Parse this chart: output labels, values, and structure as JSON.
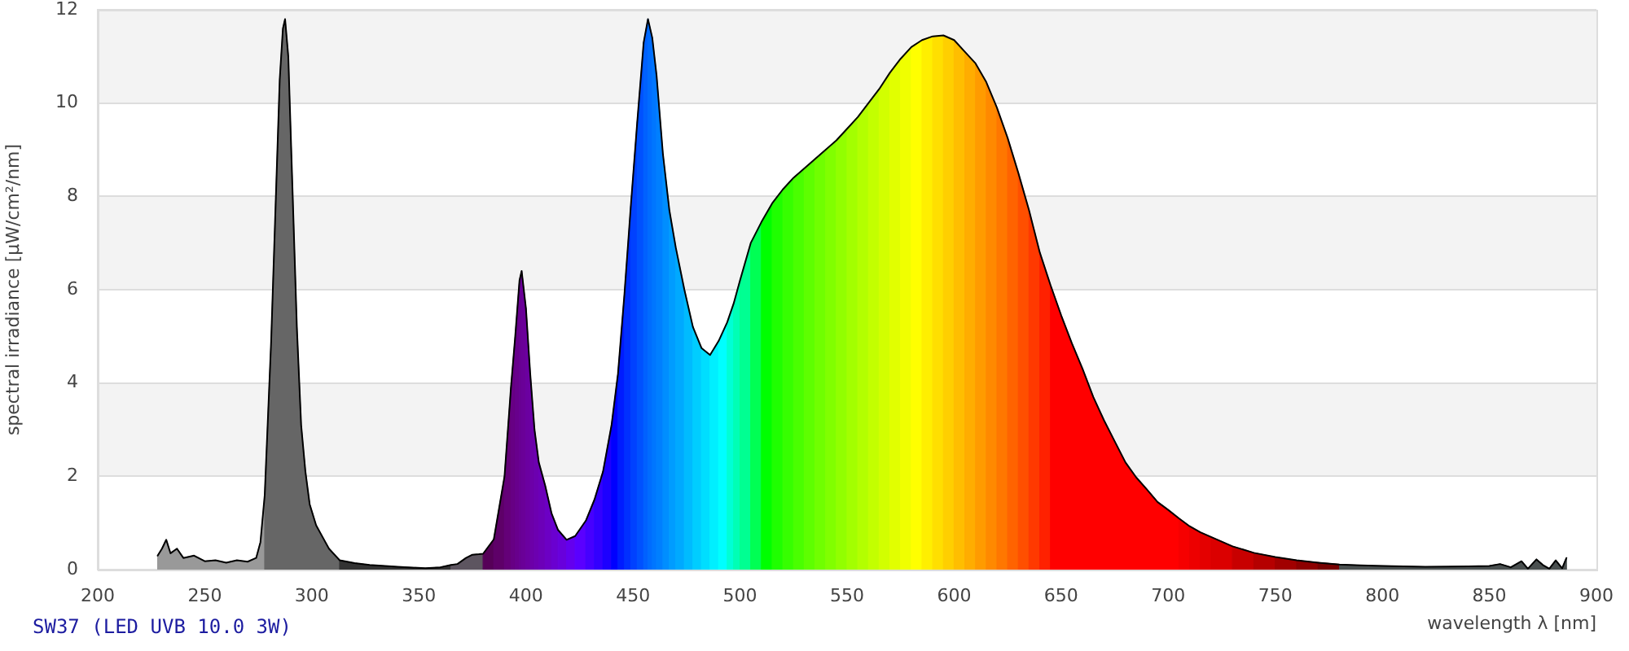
{
  "chart_data": {
    "type": "area",
    "xlabel": "wavelength λ [nm]",
    "ylabel": "spectral irradiance [µW/cm²/nm]",
    "annotations": [
      "SW37 (LED UVB 10.0 3W)"
    ],
    "xlim": [
      200,
      900
    ],
    "xticks": [
      200,
      250,
      300,
      350,
      400,
      450,
      500,
      550,
      600,
      650,
      700,
      750,
      800,
      850,
      900
    ],
    "ylim": [
      0,
      12
    ],
    "yticks": [
      0,
      2,
      4,
      6,
      8,
      10,
      12
    ],
    "grid": "y",
    "marker": "none",
    "series": [
      {
        "type": "line",
        "color": "#000000",
        "x": [
          228,
          230,
          232,
          234,
          237,
          240,
          245,
          250,
          255,
          260,
          265,
          270,
          274,
          276,
          278,
          281,
          283,
          285,
          286.5,
          287.5,
          289,
          291,
          293,
          295,
          297,
          299,
          302,
          305,
          308,
          312,
          313,
          320,
          327,
          340,
          353,
          360,
          365,
          368,
          372,
          375,
          378,
          380,
          385,
          390,
          393,
          395,
          397,
          398,
          400,
          402,
          404,
          406,
          409,
          412,
          415,
          419,
          423,
          428,
          432,
          436,
          440,
          443,
          446,
          449,
          452,
          455,
          457,
          459,
          461,
          464,
          467,
          470,
          474,
          478,
          482,
          486,
          490,
          494,
          497,
          500,
          505,
          510,
          515,
          520,
          525,
          530,
          535,
          540,
          545,
          550,
          555,
          560,
          565,
          570,
          575,
          580,
          585,
          590,
          595,
          600,
          605,
          610,
          615,
          620,
          625,
          630,
          635,
          640,
          645,
          650,
          655,
          660,
          665,
          670,
          675,
          680,
          685,
          690,
          695,
          700,
          705,
          710,
          715,
          720,
          730,
          740,
          750,
          760,
          770,
          780,
          790,
          800,
          820,
          840,
          850,
          855,
          860,
          865,
          868,
          872,
          875,
          878,
          881,
          884,
          886
        ],
        "values": [
          0.3,
          0.45,
          0.64,
          0.35,
          0.45,
          0.25,
          0.3,
          0.18,
          0.2,
          0.15,
          0.2,
          0.17,
          0.25,
          0.59,
          1.6,
          4.9,
          7.7,
          10.5,
          11.6,
          11.8,
          11.0,
          8.1,
          5.2,
          3.1,
          2.1,
          1.4,
          0.95,
          0.7,
          0.45,
          0.25,
          0.2,
          0.14,
          0.1,
          0.06,
          0.03,
          0.05,
          0.1,
          0.12,
          0.25,
          0.32,
          0.33,
          0.34,
          0.65,
          2.0,
          3.9,
          5.0,
          6.2,
          6.4,
          5.6,
          4.2,
          3.0,
          2.3,
          1.8,
          1.2,
          0.85,
          0.64,
          0.72,
          1.05,
          1.5,
          2.1,
          3.1,
          4.2,
          5.9,
          7.8,
          9.6,
          11.3,
          11.8,
          11.4,
          10.6,
          8.9,
          7.7,
          6.9,
          6.0,
          5.2,
          4.75,
          4.6,
          4.9,
          5.3,
          5.7,
          6.2,
          7.0,
          7.45,
          7.85,
          8.15,
          8.4,
          8.6,
          8.8,
          9.0,
          9.2,
          9.45,
          9.7,
          10.0,
          10.3,
          10.65,
          10.95,
          11.2,
          11.35,
          11.43,
          11.45,
          11.35,
          11.1,
          10.85,
          10.45,
          9.9,
          9.25,
          8.5,
          7.7,
          6.8,
          6.1,
          5.45,
          4.85,
          4.3,
          3.7,
          3.2,
          2.75,
          2.3,
          1.98,
          1.72,
          1.45,
          1.28,
          1.1,
          0.93,
          0.8,
          0.7,
          0.5,
          0.36,
          0.27,
          0.2,
          0.15,
          0.11,
          0.09,
          0.08,
          0.06,
          0.07,
          0.08,
          0.12,
          0.05,
          0.18,
          0.02,
          0.22,
          0.1,
          0.02,
          0.2,
          0.03,
          0.25
        ]
      },
      {
        "color": "#999999",
        "x": [
          228,
          230,
          232,
          234,
          237,
          240,
          245,
          250,
          255,
          260,
          265,
          270,
          274,
          276,
          278
        ],
        "values": [
          0.3,
          0.45,
          0.64,
          0.35,
          0.45,
          0.25,
          0.3,
          0.18,
          0.2,
          0.15,
          0.2,
          0.17,
          0.25,
          0.59,
          1.6
        ]
      },
      {
        "color": "#666666",
        "x": [
          278,
          281,
          283,
          285,
          286.5,
          287.5,
          289,
          291,
          293,
          295,
          297,
          299,
          302,
          305,
          308,
          312,
          313
        ],
        "values": [
          1.6,
          4.9,
          7.7,
          10.5,
          11.6,
          11.8,
          11.0,
          8.1,
          5.2,
          3.1,
          2.1,
          1.4,
          0.95,
          0.7,
          0.45,
          0.25,
          0.2
        ]
      },
      {
        "color": "#333333",
        "x": [
          313,
          320,
          327,
          340,
          353,
          360,
          365
        ],
        "values": [
          0.2,
          0.14,
          0.1,
          0.06,
          0.03,
          0.05,
          0.1
        ]
      },
      {
        "color": "#5d5560",
        "x": [
          365,
          368,
          372,
          375,
          378,
          380
        ],
        "values": [
          0.1,
          0.12,
          0.25,
          0.32,
          0.33,
          0.34
        ]
      },
      {
        "color": "#560058",
        "x": [
          380,
          385
        ],
        "values": [
          0.34,
          0.65
        ]
      },
      {
        "color": "#5e0068",
        "x": [
          385,
          390
        ],
        "values": [
          0.65,
          2.0
        ]
      },
      {
        "color": "#640078",
        "x": [
          390,
          393
        ],
        "values": [
          2.0,
          3.9
        ]
      },
      {
        "color": "#670084",
        "x": [
          393,
          395
        ],
        "values": [
          3.9,
          5.0
        ]
      },
      {
        "color": "#68008c",
        "x": [
          395,
          397
        ],
        "values": [
          5.0,
          6.2
        ]
      },
      {
        "color": "#690094",
        "x": [
          397,
          398
        ],
        "values": [
          6.2,
          6.4
        ]
      },
      {
        "color": "#6a0098",
        "x": [
          398,
          400
        ],
        "values": [
          6.4,
          5.6
        ]
      },
      {
        "color": "#6b00a0",
        "x": [
          400,
          402
        ],
        "values": [
          5.6,
          4.2
        ]
      },
      {
        "color": "#6c00a8",
        "x": [
          402,
          404
        ],
        "values": [
          4.2,
          3.0
        ]
      },
      {
        "color": "#6c00b0",
        "x": [
          404,
          406
        ],
        "values": [
          3.0,
          2.3
        ]
      },
      {
        "color": "#6c00b8",
        "x": [
          406,
          409
        ],
        "values": [
          2.3,
          1.8
        ]
      },
      {
        "color": "#6c00c4",
        "x": [
          409,
          412
        ],
        "values": [
          1.8,
          1.2
        ]
      },
      {
        "color": "#6a00d0",
        "x": [
          412,
          415
        ],
        "values": [
          1.2,
          0.85
        ]
      },
      {
        "color": "#6800dc",
        "x": [
          415,
          419
        ],
        "values": [
          0.85,
          0.64
        ]
      },
      {
        "color": "#6400ee",
        "x": [
          419,
          423
        ],
        "values": [
          0.64,
          0.72
        ]
      },
      {
        "color": "#5a00ff",
        "x": [
          423,
          428
        ],
        "values": [
          0.72,
          1.05
        ]
      },
      {
        "color": "#4600ff",
        "x": [
          428,
          432
        ],
        "values": [
          1.05,
          1.5
        ]
      },
      {
        "color": "#3300ff",
        "x": [
          432,
          436
        ],
        "values": [
          1.5,
          2.1
        ]
      },
      {
        "color": "#1d00ff",
        "x": [
          436,
          440
        ],
        "values": [
          2.1,
          3.1
        ]
      },
      {
        "color": "#0000ff",
        "x": [
          440,
          443
        ],
        "values": [
          3.1,
          4.2
        ]
      },
      {
        "color": "#001bff",
        "x": [
          443,
          446
        ],
        "values": [
          4.2,
          5.9
        ]
      },
      {
        "color": "#002fff",
        "x": [
          446,
          449
        ],
        "values": [
          5.9,
          7.8
        ]
      },
      {
        "color": "#0041ff",
        "x": [
          449,
          452
        ],
        "values": [
          7.8,
          9.6
        ]
      },
      {
        "color": "#0051ff",
        "x": [
          452,
          455
        ],
        "values": [
          9.6,
          11.3
        ]
      },
      {
        "color": "#0061ff",
        "x": [
          455,
          457
        ],
        "values": [
          11.3,
          11.8
        ]
      },
      {
        "color": "#006cff",
        "x": [
          457,
          459
        ],
        "values": [
          11.8,
          11.4
        ]
      },
      {
        "color": "#0076ff",
        "x": [
          459,
          461
        ],
        "values": [
          11.4,
          10.6
        ]
      },
      {
        "color": "#007fff",
        "x": [
          461,
          464
        ],
        "values": [
          10.6,
          8.9
        ]
      },
      {
        "color": "#008eff",
        "x": [
          464,
          467
        ],
        "values": [
          8.9,
          7.7
        ]
      },
      {
        "color": "#009cff",
        "x": [
          467,
          470
        ],
        "values": [
          7.7,
          6.9
        ]
      },
      {
        "color": "#00a9ff",
        "x": [
          470,
          474
        ],
        "values": [
          6.9,
          6.0
        ]
      },
      {
        "color": "#00bbff",
        "x": [
          474,
          478
        ],
        "values": [
          6.0,
          5.2
        ]
      },
      {
        "color": "#00cdff",
        "x": [
          478,
          482
        ],
        "values": [
          5.2,
          4.75
        ]
      },
      {
        "color": "#00deff",
        "x": [
          482,
          486
        ],
        "values": [
          4.75,
          4.6
        ]
      },
      {
        "color": "#00efff",
        "x": [
          486,
          490
        ],
        "values": [
          4.6,
          4.9
        ]
      },
      {
        "color": "#00ffff",
        "x": [
          490,
          494
        ],
        "values": [
          4.9,
          5.3
        ]
      },
      {
        "color": "#00ffd5",
        "x": [
          494,
          497
        ],
        "values": [
          5.3,
          5.7
        ]
      },
      {
        "color": "#00ffb5",
        "x": [
          497,
          500
        ],
        "values": [
          5.7,
          6.2
        ]
      },
      {
        "color": "#00ff92",
        "x": [
          500,
          505
        ],
        "values": [
          6.2,
          7.0
        ]
      },
      {
        "color": "#00ff54",
        "x": [
          505,
          510
        ],
        "values": [
          7.0,
          7.45
        ]
      },
      {
        "color": "#00ff00",
        "x": [
          510,
          515
        ],
        "values": [
          7.45,
          7.85
        ]
      },
      {
        "color": "#1fff00",
        "x": [
          515,
          520
        ],
        "values": [
          7.85,
          8.15
        ]
      },
      {
        "color": "#36ff00",
        "x": [
          520,
          525
        ],
        "values": [
          8.15,
          8.4
        ]
      },
      {
        "color": "#4aff00",
        "x": [
          525,
          530
        ],
        "values": [
          8.4,
          8.6
        ]
      },
      {
        "color": "#5eff00",
        "x": [
          530,
          535
        ],
        "values": [
          8.6,
          8.8
        ]
      },
      {
        "color": "#70ff00",
        "x": [
          535,
          540
        ],
        "values": [
          8.8,
          9.0
        ]
      },
      {
        "color": "#81ff00",
        "x": [
          540,
          545
        ],
        "values": [
          9.0,
          9.2
        ]
      },
      {
        "color": "#92ff00",
        "x": [
          545,
          550
        ],
        "values": [
          9.2,
          9.45
        ]
      },
      {
        "color": "#a3ff00",
        "x": [
          550,
          555
        ],
        "values": [
          9.45,
          9.7
        ]
      },
      {
        "color": "#b3ff00",
        "x": [
          555,
          560
        ],
        "values": [
          9.7,
          10.0
        ]
      },
      {
        "color": "#c3ff00",
        "x": [
          560,
          565
        ],
        "values": [
          10.0,
          10.3
        ]
      },
      {
        "color": "#d2ff00",
        "x": [
          565,
          570
        ],
        "values": [
          10.3,
          10.65
        ]
      },
      {
        "color": "#e1ff00",
        "x": [
          570,
          575
        ],
        "values": [
          10.65,
          10.95
        ]
      },
      {
        "color": "#f0ff00",
        "x": [
          575,
          580
        ],
        "values": [
          10.95,
          11.2
        ]
      },
      {
        "color": "#ffff00",
        "x": [
          580,
          585
        ],
        "values": [
          11.2,
          11.35
        ]
      },
      {
        "color": "#ffef00",
        "x": [
          585,
          590
        ],
        "values": [
          11.35,
          11.43
        ]
      },
      {
        "color": "#ffdf00",
        "x": [
          590,
          595
        ],
        "values": [
          11.43,
          11.45
        ]
      },
      {
        "color": "#ffcf00",
        "x": [
          595,
          600
        ],
        "values": [
          11.45,
          11.35
        ]
      },
      {
        "color": "#ffbe00",
        "x": [
          600,
          605
        ],
        "values": [
          11.35,
          11.1
        ]
      },
      {
        "color": "#ffad00",
        "x": [
          605,
          610
        ],
        "values": [
          11.1,
          10.85
        ]
      },
      {
        "color": "#ff9b00",
        "x": [
          610,
          615
        ],
        "values": [
          10.85,
          10.45
        ]
      },
      {
        "color": "#ff8900",
        "x": [
          615,
          620
        ],
        "values": [
          10.45,
          9.9
        ]
      },
      {
        "color": "#ff7700",
        "x": [
          620,
          625
        ],
        "values": [
          9.9,
          9.25
        ]
      },
      {
        "color": "#ff6300",
        "x": [
          625,
          630
        ],
        "values": [
          9.25,
          8.5
        ]
      },
      {
        "color": "#ff4f00",
        "x": [
          630,
          635
        ],
        "values": [
          8.5,
          7.7
        ]
      },
      {
        "color": "#ff3900",
        "x": [
          635,
          640
        ],
        "values": [
          7.7,
          6.8
        ]
      },
      {
        "color": "#ff2100",
        "x": [
          640,
          645
        ],
        "values": [
          6.8,
          6.1
        ]
      },
      {
        "color": "#ff0000",
        "x": [
          645,
          650,
          655,
          660,
          665,
          670,
          675,
          680,
          685,
          690,
          695,
          700,
          705
        ],
        "values": [
          6.1,
          5.45,
          4.85,
          4.3,
          3.7,
          3.2,
          2.75,
          2.3,
          1.98,
          1.72,
          1.45,
          1.28,
          1.1
        ]
      },
      {
        "color": "#f60000",
        "x": [
          705,
          710
        ],
        "values": [
          1.1,
          0.93
        ]
      },
      {
        "color": "#ed0000",
        "x": [
          710,
          715
        ],
        "values": [
          0.93,
          0.8
        ]
      },
      {
        "color": "#e40000",
        "x": [
          715,
          720
        ],
        "values": [
          0.8,
          0.7
        ]
      },
      {
        "color": "#db0000",
        "x": [
          720,
          730
        ],
        "values": [
          0.7,
          0.5
        ]
      },
      {
        "color": "#c80000",
        "x": [
          730,
          740
        ],
        "values": [
          0.5,
          0.36
        ]
      },
      {
        "color": "#b50000",
        "x": [
          740,
          750
        ],
        "values": [
          0.36,
          0.27
        ]
      },
      {
        "color": "#a10000",
        "x": [
          750,
          760
        ],
        "values": [
          0.27,
          0.2
        ]
      },
      {
        "color": "#8d0000",
        "x": [
          760,
          770
        ],
        "values": [
          0.2,
          0.15
        ]
      },
      {
        "color": "#770000",
        "x": [
          770,
          780
        ],
        "values": [
          0.15,
          0.11
        ]
      },
      {
        "color": "#4a5050",
        "x": [
          780,
          790,
          800,
          820,
          840,
          850,
          855,
          860,
          865,
          868,
          872,
          875,
          878,
          881,
          884,
          886
        ],
        "values": [
          0.11,
          0.09,
          0.08,
          0.06,
          0.07,
          0.08,
          0.12,
          0.05,
          0.18,
          0.02,
          0.22,
          0.1,
          0.02,
          0.2,
          0.03,
          0.25
        ]
      }
    ]
  }
}
